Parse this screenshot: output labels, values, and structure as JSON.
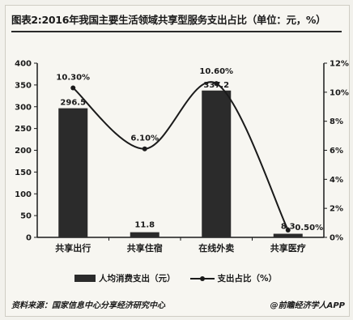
{
  "header": {
    "title": "图表2:2016年我国主要生活领域共享型服务支出占比（单位：元，%）"
  },
  "chart_data": {
    "type": "bar",
    "title": "图表2:2016年我国主要生活领域共享型服务支出占比（单位：元，%）",
    "categories": [
      "共享出行",
      "共享住宿",
      "在线外卖",
      "共享医疗"
    ],
    "y_left_ticks": [
      "0",
      "50",
      "100",
      "150",
      "200",
      "250",
      "300",
      "350",
      "400"
    ],
    "y_right_ticks": [
      "0%",
      "2%",
      "4%",
      "6%",
      "8%",
      "10%",
      "12%"
    ],
    "ylim_left": [
      0,
      400
    ],
    "ylim_right": [
      0,
      12
    ],
    "series": [
      {
        "name": "人均消费支出（元）",
        "type": "bar",
        "axis": "left",
        "values": [
          296.5,
          11.8,
          337.2,
          8.3
        ],
        "labels": [
          "296.5",
          "11.8",
          "337.2",
          "8.3"
        ]
      },
      {
        "name": "支出占比（%）",
        "type": "line",
        "axis": "right",
        "values": [
          10.3,
          6.1,
          10.6,
          0.5
        ],
        "labels": [
          "10.30%",
          "6.10%",
          "10.60%",
          "0.50%"
        ]
      }
    ],
    "legend_position": "bottom",
    "grid": false
  },
  "legend": {
    "bar_label": "人均消费支出（元）",
    "line_label": "支出占比（%）"
  },
  "footer": {
    "source": "资料来源：国家信息中心分享经济研究中心",
    "watermark": "@前瞻经济学人APP"
  },
  "colors": {
    "bar": "#2b2b2b",
    "line": "#1a1a1a",
    "background": "#f7f6f1"
  }
}
